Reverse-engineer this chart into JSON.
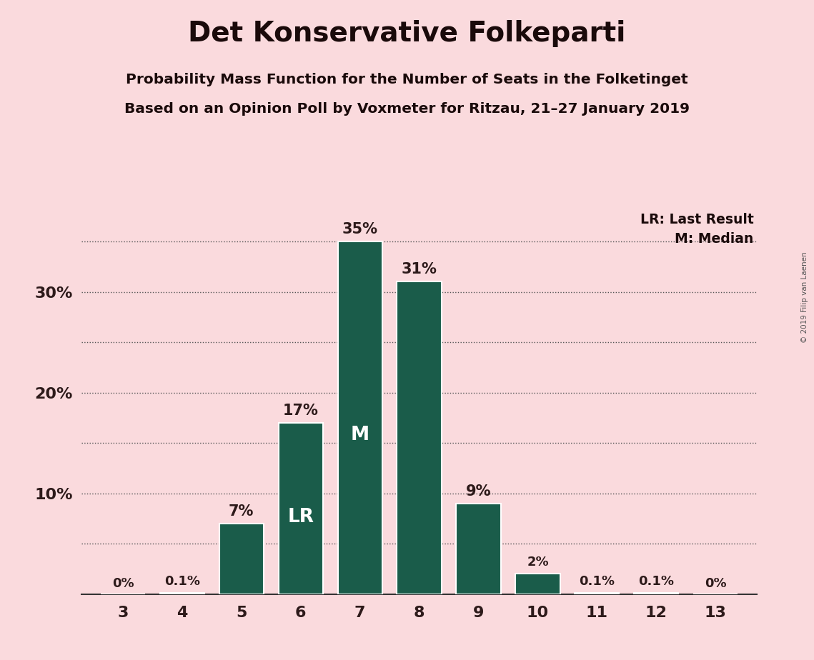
{
  "title": "Det Konservative Folkeparti",
  "subtitle1": "Probability Mass Function for the Number of Seats in the Folketinget",
  "subtitle2": "Based on an Opinion Poll by Voxmeter for Ritzau, 21–27 January 2019",
  "copyright": "© 2019 Filip van Laenen",
  "categories": [
    3,
    4,
    5,
    6,
    7,
    8,
    9,
    10,
    11,
    12,
    13
  ],
  "values": [
    0.0,
    0.1,
    7.0,
    17.0,
    35.0,
    31.0,
    9.0,
    2.0,
    0.1,
    0.1,
    0.0
  ],
  "bar_color": "#1a5c4a",
  "background_color": "#fadadd",
  "bar_labels": [
    "0%",
    "0.1%",
    "7%",
    "17%",
    "35%",
    "31%",
    "9%",
    "2%",
    "0.1%",
    "0.1%",
    "0%"
  ],
  "bar_label_color": "#2d1a1a",
  "bar_text_color": "#ffffff",
  "lr_seat": 6,
  "median_seat": 7,
  "lr_label": "LR",
  "median_label": "M",
  "legend_lr": "LR: Last Result",
  "legend_m": "M: Median",
  "ylim": [
    0,
    38
  ],
  "dotted_lines": [
    5,
    10,
    15,
    20,
    25,
    30,
    35
  ],
  "yticks_shown": [
    10,
    20,
    30
  ],
  "ytick_labels_shown": [
    "10%",
    "20%",
    "30%"
  ]
}
